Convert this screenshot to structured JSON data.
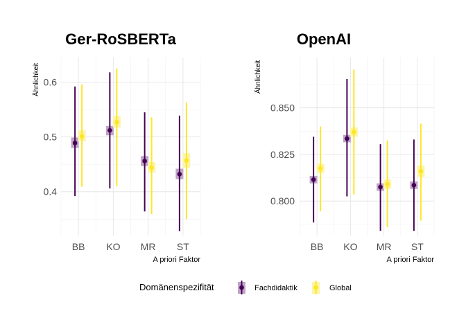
{
  "colors": {
    "fachdidaktik": "#440154",
    "global": "#FDE725",
    "band_fachdidaktik": "#bfa4c6",
    "band_global": "#fdf4a6",
    "grid_major": "#e6e6e6",
    "grid_minor": "#f1f1f1",
    "axis_text": "#4d4d4d",
    "title": "#000000"
  },
  "legend": {
    "title": "Domänenspezifität",
    "items": [
      {
        "label": "Fachdidaktik",
        "color_key": "fachdidaktik"
      },
      {
        "label": "Global",
        "color_key": "global"
      }
    ]
  },
  "chart_data": [
    {
      "type": "pointrange",
      "title": "Ger-RoSBERTa",
      "xlabel": "A priori Faktor",
      "ylabel": "Ähnlichkeit",
      "categories": [
        "BB",
        "KO",
        "MR",
        "ST"
      ],
      "ylim": [
        0.32,
        0.645
      ],
      "yticks": [
        0.4,
        0.5,
        0.6
      ],
      "ytick_labels": [
        "0.4",
        "0.5",
        "0.6"
      ],
      "grid": true,
      "series": [
        {
          "name": "Fachdidaktik",
          "points": [
            {
              "category": "BB",
              "mean": 0.489,
              "ci_low": 0.48,
              "ci_high": 0.499,
              "low": 0.392,
              "high": 0.592
            },
            {
              "category": "KO",
              "mean": 0.512,
              "ci_low": 0.503,
              "ci_high": 0.52,
              "low": 0.406,
              "high": 0.618
            },
            {
              "category": "MR",
              "mean": 0.456,
              "ci_low": 0.447,
              "ci_high": 0.465,
              "low": 0.364,
              "high": 0.545
            },
            {
              "category": "ST",
              "mean": 0.432,
              "ci_low": 0.423,
              "ci_high": 0.442,
              "low": 0.328,
              "high": 0.539
            }
          ]
        },
        {
          "name": "Global",
          "points": [
            {
              "category": "BB",
              "mean": 0.501,
              "ci_low": 0.492,
              "ci_high": 0.512,
              "low": 0.409,
              "high": 0.596
            },
            {
              "category": "KO",
              "mean": 0.527,
              "ci_low": 0.517,
              "ci_high": 0.538,
              "low": 0.41,
              "high": 0.625
            },
            {
              "category": "MR",
              "mean": 0.444,
              "ci_low": 0.435,
              "ci_high": 0.454,
              "low": 0.359,
              "high": 0.536
            },
            {
              "category": "ST",
              "mean": 0.457,
              "ci_low": 0.444,
              "ci_high": 0.47,
              "low": 0.35,
              "high": 0.563
            }
          ]
        }
      ]
    },
    {
      "type": "pointrange",
      "title": "OpenAI",
      "xlabel": "A priori Faktor",
      "ylabel": "Ähnlichkeit",
      "categories": [
        "BB",
        "KO",
        "MR",
        "ST"
      ],
      "ylim": [
        0.7815,
        0.877
      ],
      "yticks": [
        0.8,
        0.825,
        0.85
      ],
      "ytick_labels": [
        "0.800",
        "0.825",
        "0.850"
      ],
      "grid": true,
      "series": [
        {
          "name": "Fachdidaktik",
          "points": [
            {
              "category": "BB",
              "mean": 0.8115,
              "ci_low": 0.8095,
              "ci_high": 0.8135,
              "low": 0.7885,
              "high": 0.8345
            },
            {
              "category": "KO",
              "mean": 0.8335,
              "ci_low": 0.8315,
              "ci_high": 0.8355,
              "low": 0.8025,
              "high": 0.8655
            },
            {
              "category": "MR",
              "mean": 0.8075,
              "ci_low": 0.8055,
              "ci_high": 0.8095,
              "low": 0.784,
              "high": 0.8305
            },
            {
              "category": "ST",
              "mean": 0.8085,
              "ci_low": 0.8065,
              "ci_high": 0.8105,
              "low": 0.784,
              "high": 0.833
            }
          ]
        },
        {
          "name": "Global",
          "points": [
            {
              "category": "BB",
              "mean": 0.8175,
              "ci_low": 0.815,
              "ci_high": 0.82,
              "low": 0.7945,
              "high": 0.84
            },
            {
              "category": "KO",
              "mean": 0.837,
              "ci_low": 0.8345,
              "ci_high": 0.8395,
              "low": 0.8035,
              "high": 0.8705
            },
            {
              "category": "MR",
              "mean": 0.809,
              "ci_low": 0.8065,
              "ci_high": 0.8115,
              "low": 0.786,
              "high": 0.8325
            },
            {
              "category": "ST",
              "mean": 0.816,
              "ci_low": 0.813,
              "ci_high": 0.819,
              "low": 0.7895,
              "high": 0.8415
            }
          ]
        }
      ]
    }
  ]
}
